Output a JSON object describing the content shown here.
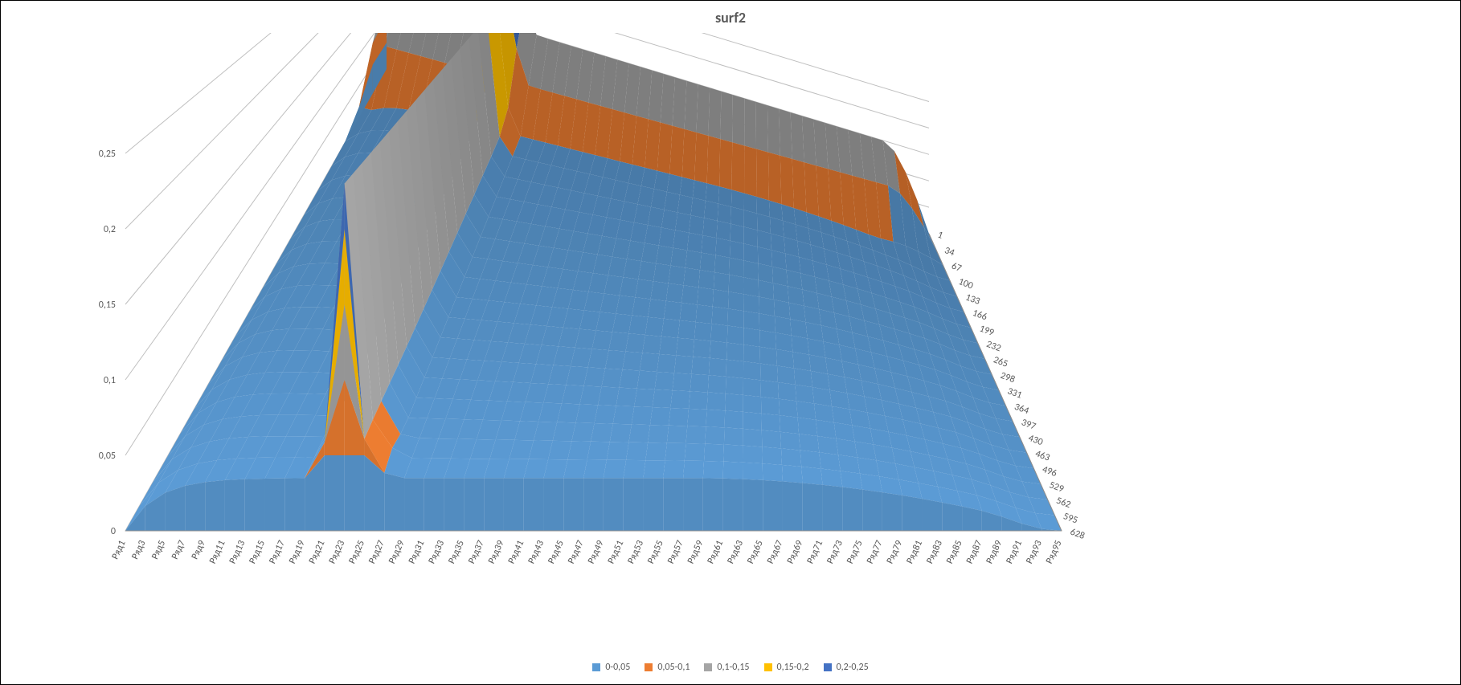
{
  "chart": {
    "type": "3d-surface",
    "title": "surf2",
    "title_fontsize": 18,
    "title_color": "#595959",
    "background_color": "#ffffff",
    "border_color": "#000000",
    "axis_label_color": "#595959",
    "axis_label_fontsize": 12,
    "grid_color": "#bfbfbf",
    "wall_color": "#d9d9d9",
    "floor_color": "#d9d9d9",
    "z_axis": {
      "min": 0,
      "max": 0.25,
      "step": 0.05,
      "ticks": [
        "0",
        "0,05",
        "0,1",
        "0,15",
        "0,2",
        "0,25"
      ]
    },
    "x_axis": {
      "categories": [
        "Ряд1",
        "Ряд3",
        "Ряд5",
        "Ряд7",
        "Ряд9",
        "Ряд11",
        "Ряд13",
        "Ряд15",
        "Ряд17",
        "Ряд19",
        "Ряд21",
        "Ряд23",
        "Ряд25",
        "Ряд27",
        "Ряд29",
        "Ряд31",
        "Ряд33",
        "Ряд35",
        "Ряд37",
        "Ряд39",
        "Ряд41",
        "Ряд43",
        "Ряд45",
        "Ряд47",
        "Ряд49",
        "Ряд51",
        "Ряд53",
        "Ряд55",
        "Ряд57",
        "Ряд59",
        "Ряд61",
        "Ряд63",
        "Ряд65",
        "Ряд67",
        "Ряд69",
        "Ряд71",
        "Ряд73",
        "Ряд75",
        "Ряд77",
        "Ряд79",
        "Ряд81",
        "Ряд83",
        "Ряд85",
        "Ряд87",
        "Ряд89",
        "Ряд91",
        "Ряд93",
        "Ряд95"
      ]
    },
    "depth_axis": {
      "ticks": [
        "1",
        "34",
        "67",
        "100",
        "133",
        "166",
        "199",
        "232",
        "265",
        "298",
        "331",
        "364",
        "397",
        "430",
        "463",
        "496",
        "529",
        "562",
        "595",
        "628"
      ]
    },
    "legend": [
      {
        "label": "0-0,05",
        "color": "#5b9bd5"
      },
      {
        "label": "0,05-0,1",
        "color": "#ed7d31"
      },
      {
        "label": "0,1-0,15",
        "color": "#a5a5a5"
      },
      {
        "label": "0,15-0,2",
        "color": "#ffc000"
      },
      {
        "label": "0,2-0,25",
        "color": "#4472c4"
      }
    ],
    "surface": {
      "comment": "Approximate contour-banded surface: a tall spike near x≈Ряд23 reaching ~0.25, a narrow ridge along the back wall (depth=1) of similar height, and a broad low plateau ~0.03 over the rest, tapering to 0 at the far right edge.",
      "bands": [
        {
          "range": "0-0.05",
          "color": "#5b9bd5"
        },
        {
          "range": "0.05-0.1",
          "color": "#ed7d31"
        },
        {
          "range": "0.1-0.15",
          "color": "#a5a5a5"
        },
        {
          "range": "0.15-0.2",
          "color": "#ffc000"
        },
        {
          "range": "0.2-0.25",
          "color": "#4472c4"
        }
      ],
      "back_wall_ridge_height": 0.15,
      "spike_x_index": 11,
      "spike_height": 0.25,
      "plateau_height": 0.035
    }
  }
}
